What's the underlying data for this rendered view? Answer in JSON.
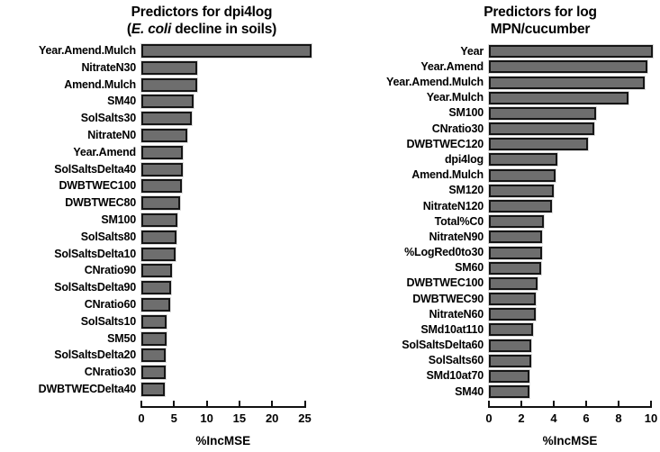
{
  "figure": {
    "background": "#ffffff",
    "bar_fill": "#6e6e6e",
    "bar_border": "#151515",
    "bar_halo": "#dcdcdc",
    "text_color": "#000000"
  },
  "chart_data": [
    {
      "type": "bar",
      "orientation": "horizontal",
      "title": "Predictors for dpi4log",
      "title_line2_segments": [
        {
          "text": "(",
          "italic": false
        },
        {
          "text": "E. coli",
          "italic": true
        },
        {
          "text": " decline in soils)",
          "italic": false
        }
      ],
      "xlabel": "%IncMSE",
      "xlim": [
        0,
        26
      ],
      "ticks": [
        0,
        5,
        10,
        15,
        20,
        25
      ],
      "grid": false,
      "legend": "none",
      "categories": [
        "Year.Amend.Mulch",
        "NitrateN30",
        "Amend.Mulch",
        "SM40",
        "SolSalts30",
        "NitrateN0",
        "Year.Amend",
        "SolSaltsDelta40",
        "DWBTWEC100",
        "DWBTWEC80",
        "SM100",
        "SolSalts80",
        "SolSaltsDelta10",
        "CNratio90",
        "SolSaltsDelta90",
        "CNratio60",
        "SolSalts10",
        "SM50",
        "SolSaltsDelta20",
        "CNratio30",
        "DWBTWECDelta40"
      ],
      "values": [
        26.0,
        8.6,
        8.5,
        8.0,
        7.7,
        7.0,
        6.4,
        6.3,
        6.2,
        5.9,
        5.5,
        5.4,
        5.3,
        4.7,
        4.6,
        4.4,
        3.8,
        3.8,
        3.7,
        3.7,
        3.6
      ]
    },
    {
      "type": "bar",
      "orientation": "horizontal",
      "title": "Predictors for log",
      "title_line2_segments": [
        {
          "text": "MPN/cucumber",
          "italic": false
        }
      ],
      "xlabel": "%IncMSE",
      "xlim": [
        0,
        10.2
      ],
      "ticks": [
        0,
        2,
        4,
        6,
        8,
        10
      ],
      "grid": false,
      "legend": "none",
      "categories": [
        "Year",
        "Year.Amend",
        "Year.Amend.Mulch",
        "Year.Mulch",
        "SM100",
        "CNratio30",
        "DWBTWEC120",
        "dpi4log",
        "Amend.Mulch",
        "SM120",
        "NitrateN120",
        "Total%C0",
        "NitrateN90",
        "%LogRed0to30",
        "SM60",
        "DWBTWEC100",
        "DWBTWEC90",
        "NitrateN60",
        "SMd10at110",
        "SolSaltsDelta60",
        "SolSalts60",
        "SMd10at70",
        "SM40"
      ],
      "values": [
        10.1,
        9.8,
        9.6,
        8.6,
        6.6,
        6.5,
        6.1,
        4.2,
        4.1,
        4.0,
        3.9,
        3.4,
        3.3,
        3.3,
        3.2,
        3.0,
        2.9,
        2.9,
        2.7,
        2.6,
        2.6,
        2.5,
        2.5
      ]
    }
  ]
}
